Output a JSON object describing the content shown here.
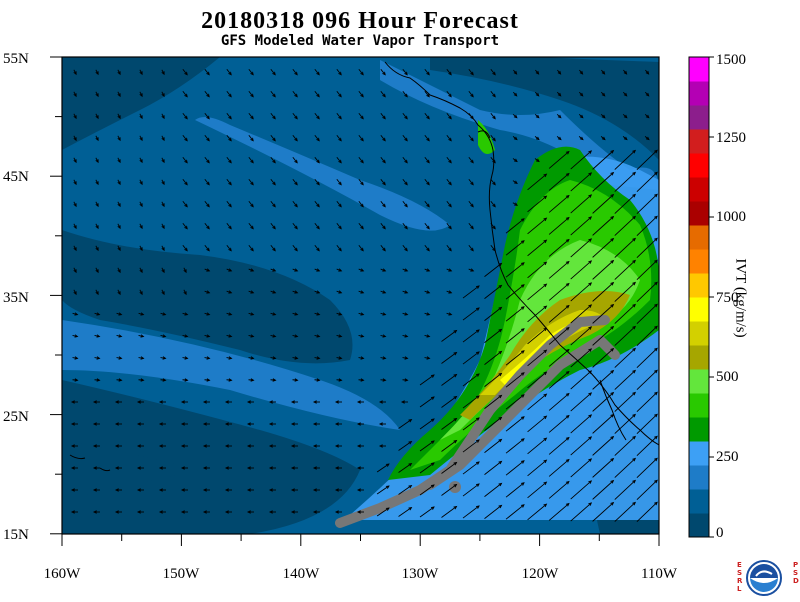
{
  "header": {
    "title": "20180318 096 Hour Forecast",
    "subtitle": "GFS Modeled Water Vapor Transport"
  },
  "map": {
    "lon_labels": [
      "160W",
      "150W",
      "140W",
      "130W",
      "120W",
      "110W"
    ],
    "lat_labels": [
      "55N",
      "45N",
      "35N",
      "25N",
      "15N"
    ],
    "lon_range": [
      -160,
      -110
    ],
    "lat_range": [
      15,
      55
    ],
    "ar_core_color": "#777777",
    "coast_color": "#000000"
  },
  "colorbar": {
    "label": "IVT (kg/m/s)",
    "tick_labels": [
      "0",
      "250",
      "500",
      "750",
      "1000",
      "1250",
      "1500"
    ],
    "colors": [
      "#00486e",
      "#005f95",
      "#1e7cc8",
      "#3da0f5",
      "#009a00",
      "#29c900",
      "#63e63c",
      "#a6a600",
      "#d3d000",
      "#ffff00",
      "#ffc800",
      "#ff8200",
      "#e66b00",
      "#aa0000",
      "#cc0000",
      "#ff0000",
      "#d21e1e",
      "#8c1e8c",
      "#b400b4",
      "#ff00ff"
    ]
  },
  "logo": {
    "name": "NOAA",
    "left_letters": "ESRL",
    "right_letters": "PSD"
  }
}
